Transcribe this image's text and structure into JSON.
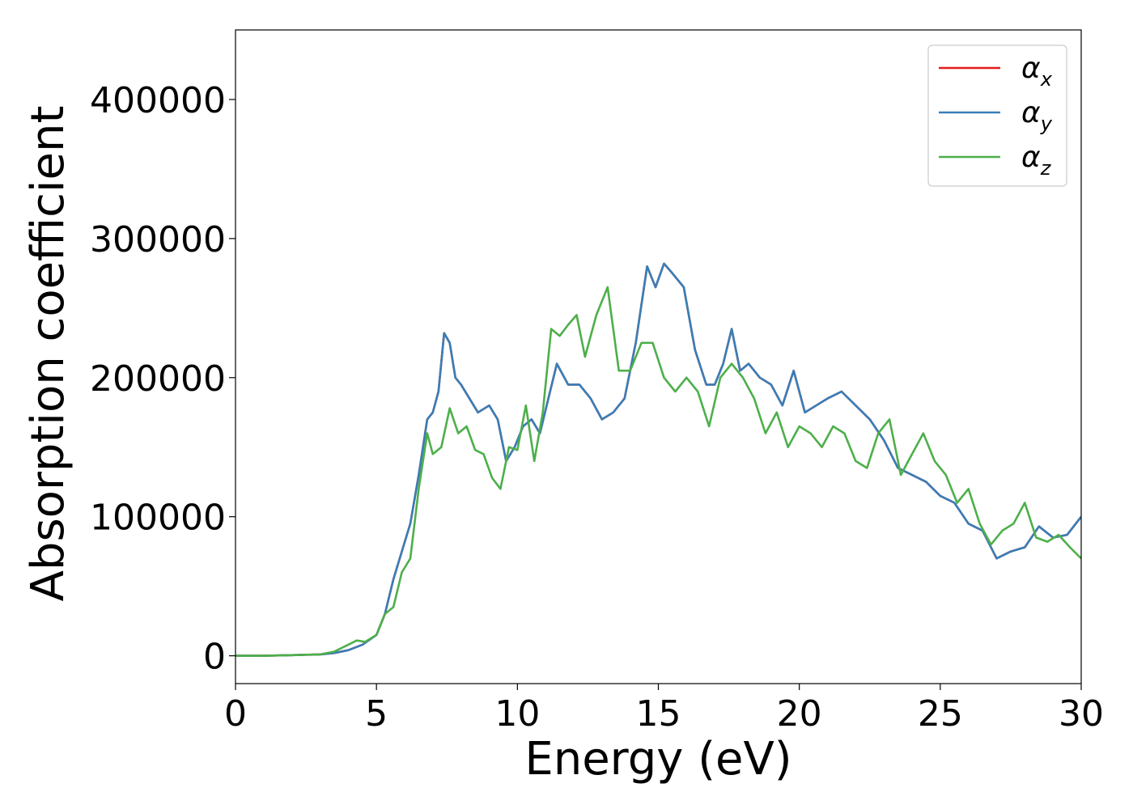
{
  "chart_data": {
    "type": "line",
    "title": "",
    "xlabel": "Energy (eV)",
    "ylabel": "Absorption coefficient",
    "xlim": [
      0,
      30
    ],
    "ylim": [
      -20000,
      450000
    ],
    "xticks": [
      0,
      5,
      10,
      15,
      20,
      25,
      30
    ],
    "yticks": [
      0,
      100000,
      200000,
      300000,
      400000
    ],
    "xtick_labels": [
      "0",
      "5",
      "10",
      "15",
      "20",
      "25",
      "30"
    ],
    "ytick_labels": [
      "0",
      "100000",
      "200000",
      "300000",
      "400000"
    ],
    "grid": false,
    "legend_position": "top-right",
    "series": [
      {
        "name": "α_x",
        "label_base": "α",
        "label_sub": "x",
        "color": "#e41a1c",
        "x": [
          0,
          1,
          2,
          3,
          3.5,
          4,
          4.5,
          5,
          5.3,
          5.6,
          5.9,
          6.2,
          6.5,
          6.8,
          7.0,
          7.2,
          7.4,
          7.6,
          7.8,
          8.0,
          8.3,
          8.6,
          9.0,
          9.3,
          9.6,
          9.9,
          10.2,
          10.5,
          10.8,
          11.1,
          11.4,
          11.8,
          12.2,
          12.6,
          13.0,
          13.4,
          13.8,
          14.2,
          14.6,
          14.9,
          15.2,
          15.5,
          15.9,
          16.3,
          16.7,
          17.0,
          17.3,
          17.6,
          17.9,
          18.2,
          18.6,
          19.0,
          19.4,
          19.8,
          20.2,
          20.6,
          21.0,
          21.5,
          22.0,
          22.5,
          23.0,
          23.5,
          24.0,
          24.5,
          25.0,
          25.5,
          26.0,
          26.5,
          27.0,
          27.5,
          28.0,
          28.5,
          29.0,
          29.5,
          30.0
        ],
        "y": [
          0,
          0,
          500,
          1000,
          2000,
          4000,
          8000,
          15000,
          30000,
          55000,
          75000,
          95000,
          130000,
          170000,
          175000,
          190000,
          232000,
          225000,
          200000,
          195000,
          185000,
          175000,
          180000,
          170000,
          140000,
          150000,
          165000,
          170000,
          160000,
          185000,
          210000,
          195000,
          195000,
          185000,
          170000,
          175000,
          185000,
          225000,
          280000,
          265000,
          282000,
          275000,
          265000,
          220000,
          195000,
          195000,
          210000,
          235000,
          205000,
          210000,
          200000,
          195000,
          180000,
          205000,
          175000,
          180000,
          185000,
          190000,
          180000,
          170000,
          155000,
          135000,
          130000,
          125000,
          115000,
          110000,
          95000,
          90000,
          70000,
          75000,
          78000,
          93000,
          85000,
          87000,
          100000
        ]
      },
      {
        "name": "α_y",
        "label_base": "α",
        "label_sub": "y",
        "color": "#377eb8",
        "x": [
          0,
          1,
          2,
          3,
          3.5,
          4,
          4.5,
          5,
          5.3,
          5.6,
          5.9,
          6.2,
          6.5,
          6.8,
          7.0,
          7.2,
          7.4,
          7.6,
          7.8,
          8.0,
          8.3,
          8.6,
          9.0,
          9.3,
          9.6,
          9.9,
          10.2,
          10.5,
          10.8,
          11.1,
          11.4,
          11.8,
          12.2,
          12.6,
          13.0,
          13.4,
          13.8,
          14.2,
          14.6,
          14.9,
          15.2,
          15.5,
          15.9,
          16.3,
          16.7,
          17.0,
          17.3,
          17.6,
          17.9,
          18.2,
          18.6,
          19.0,
          19.4,
          19.8,
          20.2,
          20.6,
          21.0,
          21.5,
          22.0,
          22.5,
          23.0,
          23.5,
          24.0,
          24.5,
          25.0,
          25.5,
          26.0,
          26.5,
          27.0,
          27.5,
          28.0,
          28.5,
          29.0,
          29.5,
          30.0
        ],
        "y": [
          0,
          0,
          500,
          1000,
          2000,
          4000,
          8000,
          15000,
          30000,
          55000,
          75000,
          95000,
          130000,
          170000,
          175000,
          190000,
          232000,
          225000,
          200000,
          195000,
          185000,
          175000,
          180000,
          170000,
          140000,
          150000,
          165000,
          170000,
          160000,
          185000,
          210000,
          195000,
          195000,
          185000,
          170000,
          175000,
          185000,
          225000,
          280000,
          265000,
          282000,
          275000,
          265000,
          220000,
          195000,
          195000,
          210000,
          235000,
          205000,
          210000,
          200000,
          195000,
          180000,
          205000,
          175000,
          180000,
          185000,
          190000,
          180000,
          170000,
          155000,
          135000,
          130000,
          125000,
          115000,
          110000,
          95000,
          90000,
          70000,
          75000,
          78000,
          93000,
          85000,
          87000,
          100000
        ]
      },
      {
        "name": "α_z",
        "label_base": "α",
        "label_sub": "z",
        "color": "#4daf4a",
        "x": [
          0,
          1,
          2,
          3,
          3.5,
          4,
          4.3,
          4.6,
          5,
          5.3,
          5.6,
          5.9,
          6.2,
          6.5,
          6.8,
          7.0,
          7.3,
          7.6,
          7.9,
          8.2,
          8.5,
          8.8,
          9.1,
          9.4,
          9.7,
          10.0,
          10.3,
          10.6,
          10.9,
          11.2,
          11.5,
          11.8,
          12.1,
          12.4,
          12.8,
          13.2,
          13.6,
          14.0,
          14.4,
          14.8,
          15.2,
          15.6,
          16.0,
          16.4,
          16.8,
          17.2,
          17.6,
          18.0,
          18.4,
          18.8,
          19.2,
          19.6,
          20.0,
          20.4,
          20.8,
          21.2,
          21.6,
          22.0,
          22.4,
          22.8,
          23.2,
          23.6,
          24.0,
          24.4,
          24.8,
          25.2,
          25.6,
          26.0,
          26.4,
          26.8,
          27.2,
          27.6,
          28.0,
          28.4,
          28.8,
          29.2,
          29.6,
          30.0
        ],
        "y": [
          0,
          0,
          500,
          1000,
          3000,
          8000,
          11000,
          10000,
          15000,
          30000,
          35000,
          60000,
          70000,
          120000,
          160000,
          145000,
          150000,
          178000,
          160000,
          165000,
          148000,
          145000,
          128000,
          120000,
          150000,
          148000,
          180000,
          140000,
          175000,
          235000,
          230000,
          238000,
          245000,
          215000,
          245000,
          265000,
          205000,
          205000,
          225000,
          225000,
          200000,
          190000,
          200000,
          190000,
          165000,
          200000,
          210000,
          200000,
          185000,
          160000,
          175000,
          150000,
          165000,
          160000,
          150000,
          165000,
          160000,
          140000,
          135000,
          160000,
          170000,
          130000,
          145000,
          160000,
          140000,
          130000,
          110000,
          120000,
          95000,
          80000,
          90000,
          95000,
          110000,
          85000,
          82000,
          87000,
          78000,
          70000
        ]
      }
    ]
  }
}
